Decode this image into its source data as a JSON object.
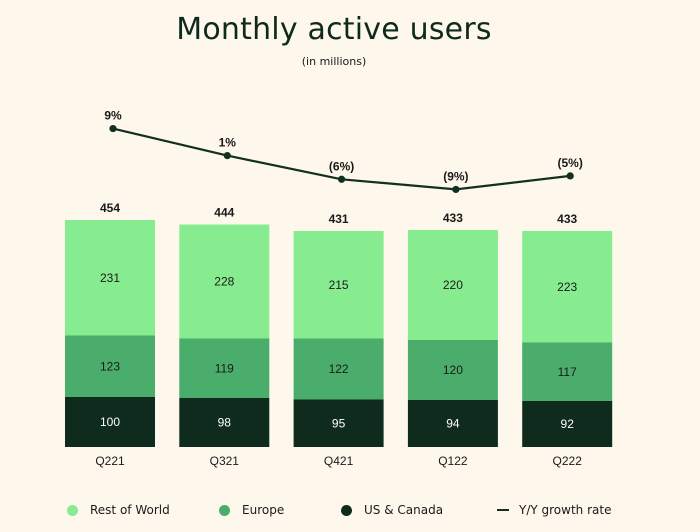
{
  "title": "Monthly active users",
  "subtitle": "(in millions)",
  "chart_data": {
    "type": "bar",
    "stacked": true,
    "categories": [
      "Q221",
      "Q321",
      "Q421",
      "Q122",
      "Q222"
    ],
    "series": [
      {
        "name": "US & Canada",
        "color": "#0f2b1e",
        "values": [
          100,
          98,
          95,
          94,
          92
        ]
      },
      {
        "name": "Europe",
        "color": "#4aad6b",
        "values": [
          123,
          119,
          122,
          120,
          117
        ]
      },
      {
        "name": "Rest of World",
        "color": "#86ec8f",
        "values": [
          231,
          228,
          215,
          220,
          223
        ]
      }
    ],
    "totals": [
      "454",
      "444",
      "431",
      "433",
      "433"
    ],
    "line": {
      "name": "Y/Y growth rate",
      "color": "#12301f",
      "values": [
        9,
        1,
        -6,
        -9,
        -5
      ],
      "labels": [
        "9%",
        "1%",
        "(6%)",
        "(9%)",
        "(5%)"
      ]
    },
    "legend": [
      {
        "label": "Rest of World",
        "color": "#86ec8f",
        "kind": "dot"
      },
      {
        "label": "Europe",
        "color": "#4aad6b",
        "kind": "dot"
      },
      {
        "label": "US & Canada",
        "color": "#0f2b1e",
        "kind": "dot"
      },
      {
        "label": "Y/Y growth rate",
        "color": "#12301f",
        "kind": "line"
      }
    ],
    "legend_position": "bottom"
  }
}
